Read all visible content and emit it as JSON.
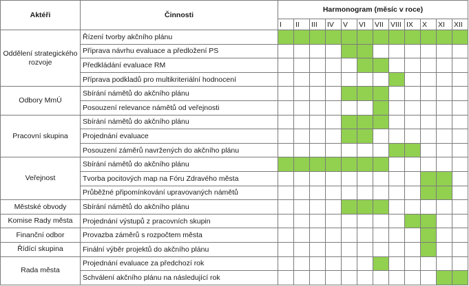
{
  "headers": {
    "actors": "Aktéři",
    "activities": "Činnosti",
    "schedule": "Harmonogram (měsíc v roce)"
  },
  "months": [
    "I",
    "II",
    "III",
    "IV",
    "V",
    "VI",
    "VII",
    "VIII",
    "IX",
    "X",
    "XI",
    "XII"
  ],
  "highlight_color": "#92d050",
  "groups": [
    {
      "actor": "Oddělení strategického rozvoje",
      "rows": [
        {
          "task": "Řízení tvorby akčního plánu",
          "months": [
            1,
            2,
            3,
            4,
            5,
            6,
            7,
            8,
            9,
            10,
            11,
            12
          ]
        },
        {
          "task": "Příprava návrhu evaluace a předložení PS",
          "months": [
            5,
            6
          ]
        },
        {
          "task": "Předkládání evaluace RM",
          "months": [
            6,
            7
          ]
        },
        {
          "task": "Příprava podkladů pro multikriteriální hodnocení",
          "months": [
            8
          ]
        }
      ]
    },
    {
      "actor": "Odbory MmÚ",
      "rows": [
        {
          "task": "Sbírání námětů do akčního plánu",
          "months": [
            5,
            6,
            7
          ]
        },
        {
          "task": "Posouzení relevance námětů od veřejnosti",
          "months": [
            7
          ]
        }
      ]
    },
    {
      "actor": "Pracovní skupina",
      "rows": [
        {
          "task": "Sbírání námětů do akčního plánu",
          "months": [
            5,
            6,
            7
          ]
        },
        {
          "task": "Projednání evaluace",
          "months": [
            5,
            6
          ]
        },
        {
          "task": "Posouzení záměrů navržených do akčního plánu",
          "months": [
            8,
            9
          ]
        }
      ]
    },
    {
      "actor": "Veřejnost",
      "rows": [
        {
          "task": "Sbírání námětů do akčního plánu",
          "months": [
            1,
            2,
            3,
            4,
            5,
            6,
            7
          ]
        },
        {
          "task": "Tvorba pocitových map na Fóru Zdravého města",
          "months": [
            10,
            11
          ]
        },
        {
          "task": "Průběžné připomínkování upravovaných námětů",
          "months": [
            10,
            11
          ]
        }
      ]
    },
    {
      "actor": "Městské obvody",
      "rows": [
        {
          "task": "Sbírání námětů do akčního plánu",
          "months": [
            5,
            6,
            7
          ]
        }
      ]
    },
    {
      "actor": "Komise Rady města",
      "rows": [
        {
          "task": "Projednání výstupů z pracovních skupin",
          "months": [
            9,
            10
          ]
        }
      ]
    },
    {
      "actor": "Finanční odbor",
      "rows": [
        {
          "task": "Provazba záměrů s rozpočtem města",
          "months": [
            10
          ]
        }
      ]
    },
    {
      "actor": "Řídící skupina",
      "rows": [
        {
          "task": "Finální výběr projektů do akčního plánu",
          "months": [
            10
          ]
        }
      ]
    },
    {
      "actor": "Rada města",
      "rows": [
        {
          "task": "Projednání evaluace za předchozí rok",
          "months": [
            7
          ]
        },
        {
          "task": "Schválení akčního plánu na následující rok",
          "months": [
            11,
            12
          ]
        }
      ]
    }
  ]
}
